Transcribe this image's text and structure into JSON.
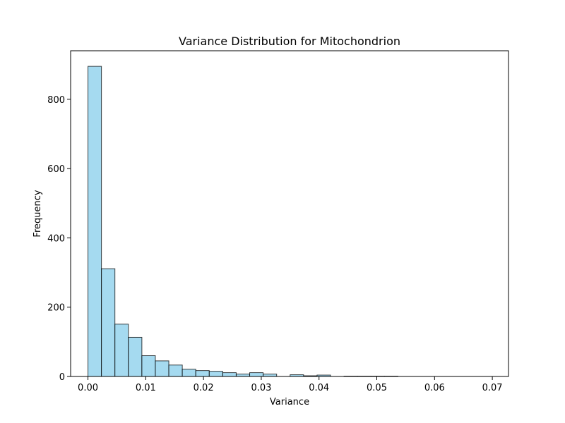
{
  "chart_data": {
    "type": "bar",
    "title": "Variance Distribution for Mitochondrion",
    "xlabel": "Variance",
    "ylabel": "Frequency",
    "xlim": [
      -0.003,
      0.0728
    ],
    "ylim": [
      0,
      940
    ],
    "xticks": [
      0.0,
      0.01,
      0.02,
      0.03,
      0.04,
      0.05,
      0.06,
      0.07
    ],
    "xtick_labels": [
      "0.00",
      "0.01",
      "0.02",
      "0.03",
      "0.04",
      "0.05",
      "0.06",
      "0.07"
    ],
    "yticks": [
      0,
      200,
      400,
      600,
      800
    ],
    "ytick_labels": [
      "0",
      "200",
      "400",
      "600",
      "800"
    ],
    "bin_start": 0.0,
    "bin_width": 0.002333,
    "values": [
      895,
      311,
      151,
      113,
      60,
      45,
      33,
      21,
      17,
      15,
      11,
      7,
      11,
      7,
      0,
      5,
      2,
      4,
      0,
      1,
      1,
      1,
      1,
      0,
      0,
      0,
      0,
      0,
      0,
      0
    ],
    "bar_color": "#87ceeb",
    "edge_color": "#000000",
    "grid": false
  }
}
